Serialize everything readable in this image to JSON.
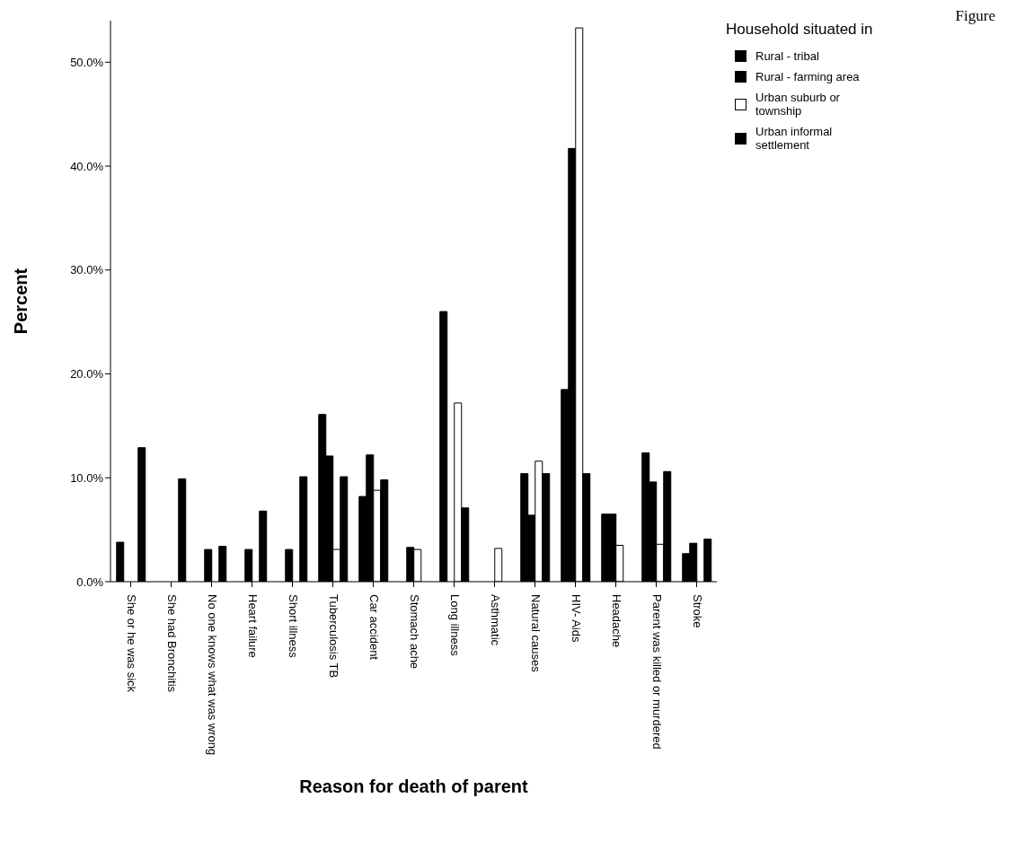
{
  "chart_data": {
    "type": "bar",
    "xlabel": "Reason for death of parent",
    "ylabel": "Percent",
    "legend_title": "Household situated in",
    "annotations": [
      "Figure"
    ],
    "categories": [
      "She or he was sick",
      "She had Bronchitis",
      "No one knows what was wrong",
      "Heart failure",
      "Short illness",
      "Tuberculosis TB",
      "Car accident",
      "Stomach ache",
      "Long illness",
      "Asthmatic",
      "Natural causes",
      "HIV- Aids",
      "Headache",
      "Parent was killed or murdered",
      "Stroke"
    ],
    "series": [
      {
        "name": "Rural - tribal",
        "color": "#000000",
        "values": [
          3.8,
          0,
          0,
          0,
          0,
          16.1,
          8.2,
          0,
          26.0,
          0,
          10.4,
          18.5,
          6.5,
          12.4,
          2.7
        ]
      },
      {
        "name": "Rural - farming area",
        "color": "#000000",
        "values": [
          0,
          0,
          3.1,
          3.1,
          3.1,
          12.1,
          12.2,
          3.3,
          0,
          0,
          6.4,
          41.7,
          6.5,
          9.6,
          3.7
        ]
      },
      {
        "name": "Urban suburb or township",
        "color": "#ffffff",
        "values": [
          0,
          0,
          0,
          0,
          0,
          3.1,
          8.8,
          3.1,
          17.2,
          3.2,
          11.6,
          53.3,
          3.5,
          3.6,
          0
        ]
      },
      {
        "name": "Urban informal settlement",
        "color": "#000000",
        "values": [
          12.9,
          9.9,
          3.4,
          6.8,
          10.1,
          10.1,
          9.8,
          0,
          7.1,
          0,
          10.4,
          10.4,
          0,
          10.6,
          4.1
        ]
      }
    ],
    "ylim": [
      0,
      54
    ],
    "yticks": [
      {
        "value": 0,
        "label": "0.0%"
      },
      {
        "value": 10,
        "label": "10.0%"
      },
      {
        "value": 20,
        "label": "20.0%"
      },
      {
        "value": 30,
        "label": "30.0%"
      },
      {
        "value": 40,
        "label": "40.0%"
      },
      {
        "value": 50,
        "label": "50.0%"
      }
    ],
    "grid": false,
    "legend": "top right"
  }
}
